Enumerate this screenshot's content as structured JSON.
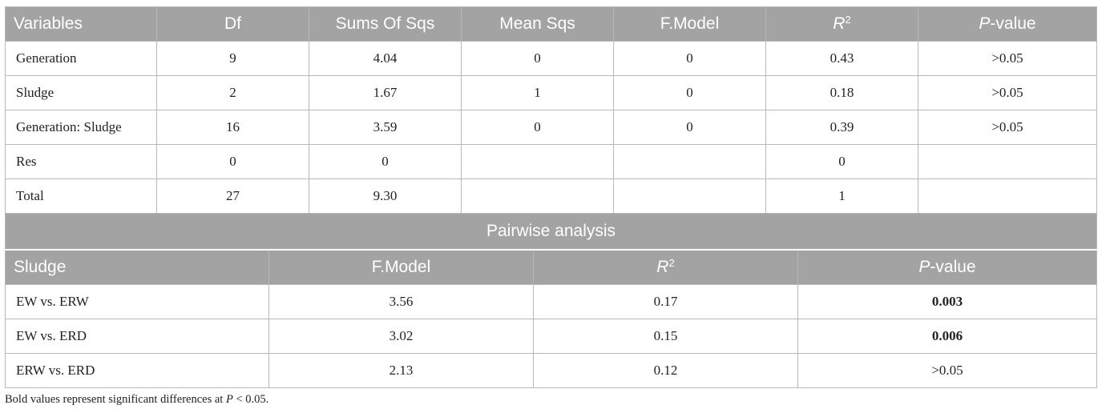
{
  "anova": {
    "headers": {
      "variables": "Variables",
      "df": "Df",
      "sums": "Sums Of Sqs",
      "mean": "Mean Sqs",
      "fmodel": "F.Model",
      "r_letter": "R",
      "r_exp": "2",
      "p_letter": "P",
      "p_rest": "-value"
    },
    "rows": [
      {
        "variable": "Generation",
        "df": "9",
        "sums": "4.04",
        "mean": "0",
        "fmodel": "0",
        "r2": "0.43",
        "p": ">0.05"
      },
      {
        "variable": "Sludge",
        "df": "2",
        "sums": "1.67",
        "mean": "1",
        "fmodel": "0",
        "r2": "0.18",
        "p": ">0.05"
      },
      {
        "variable": "Generation: Sludge",
        "df": "16",
        "sums": "3.59",
        "mean": "0",
        "fmodel": "0",
        "r2": "0.39",
        "p": ">0.05"
      },
      {
        "variable": "Res",
        "df": "0",
        "sums": "0",
        "mean": "",
        "fmodel": "",
        "r2": "0",
        "p": ""
      },
      {
        "variable": "Total",
        "df": "27",
        "sums": "9.30",
        "mean": "",
        "fmodel": "",
        "r2": "1",
        "p": ""
      }
    ]
  },
  "pairwise": {
    "title": "Pairwise analysis",
    "headers": {
      "sludge": "Sludge",
      "fmodel": "F.Model",
      "r_letter": "R",
      "r_exp": "2",
      "p_letter": "P",
      "p_rest": "-value"
    },
    "rows": [
      {
        "sludge": "EW vs. ERW",
        "fmodel": "3.56",
        "r2": "0.17",
        "p": "0.003",
        "significant": true
      },
      {
        "sludge": "EW vs. ERD",
        "fmodel": "3.02",
        "r2": "0.15",
        "p": "0.006",
        "significant": true
      },
      {
        "sludge": "ERW vs. ERD",
        "fmodel": "2.13",
        "r2": "0.12",
        "p": ">0.05",
        "significant": false
      }
    ]
  },
  "footnote": {
    "text": "Bold values represent significant differences at ",
    "p_letter": "P",
    "condition": " < 0.05."
  }
}
